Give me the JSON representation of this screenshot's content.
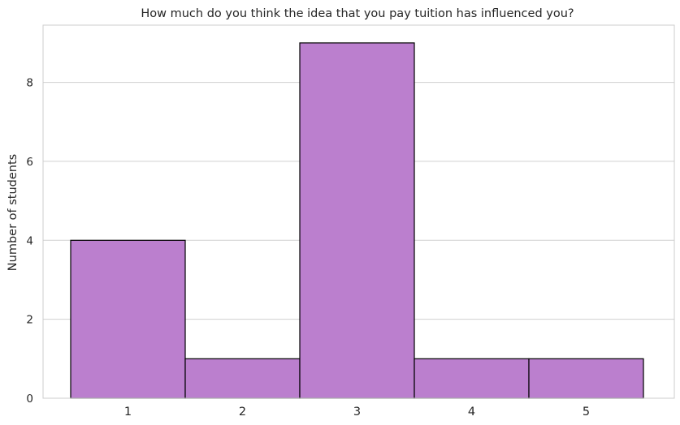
{
  "chart_data": {
    "type": "bar",
    "title": "How much do you think the idea that you pay tuition has influenced you?",
    "xlabel": "",
    "ylabel": "Number of students",
    "categories": [
      "1",
      "2",
      "3",
      "4",
      "5"
    ],
    "values": [
      4,
      1,
      9,
      1,
      1
    ],
    "ylim": [
      0,
      9.45
    ],
    "yticks": [
      "0",
      "2",
      "4",
      "6",
      "8"
    ],
    "grid": "horizontal",
    "bar_color": "#bb7fce",
    "bar_edge_color": "#000000",
    "grid_color": "#d0d0d0",
    "frame_color": "#cccccc"
  }
}
